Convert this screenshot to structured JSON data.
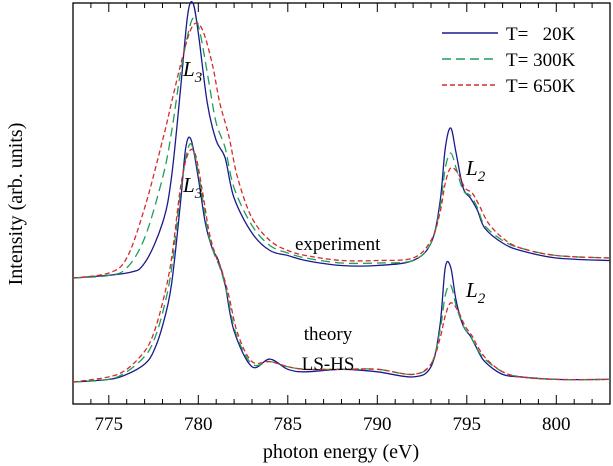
{
  "chart_data": {
    "type": "line",
    "xlabel": "photon energy (eV)",
    "ylabel": "Intensity (arb. units)",
    "xlim": [
      773,
      803
    ],
    "x_ticks": [
      775,
      780,
      785,
      790,
      795,
      800
    ],
    "x_tick_labels": [
      "775",
      "780",
      "785",
      "790",
      "795",
      "800"
    ],
    "y_ticks_shown": false,
    "grid": false,
    "legend": {
      "placement": "top-right",
      "entries": [
        {
          "label": "T=   20K",
          "color": "#1a1a8c",
          "style": "solid"
        },
        {
          "label": "T= 300K",
          "color": "#1f9e5a",
          "style": "dashed"
        },
        {
          "label": "T= 650K",
          "color": "#d42a2a",
          "style": "dotted-dashed"
        }
      ]
    },
    "annotations": {
      "experiment_label": "experiment",
      "theory_label_line1": "theory",
      "theory_label_line2": "LS-HS",
      "l3_main": "L",
      "l3_sub": "3",
      "l2_main": "L",
      "l2_sub": "2"
    },
    "panels": [
      {
        "name": "experiment",
        "series": [
          {
            "temperature": "20K",
            "x": [
              773,
              776,
              777,
              778,
              778.5,
              779,
              779.4,
              779.7,
              780,
              780.5,
              781,
              781.5,
              782,
              783,
              784,
              785,
              786,
              788,
              790,
              792,
              793,
              793.5,
              793.8,
              794.1,
              794.4,
              794.8,
              795.2,
              795.6,
              796,
              797,
              798,
              800,
              803
            ],
            "y": [
              0.0,
              0.02,
              0.06,
              0.22,
              0.4,
              0.75,
              1.05,
              1.1,
              0.98,
              0.7,
              0.55,
              0.48,
              0.32,
              0.18,
              0.11,
              0.09,
              0.07,
              0.05,
              0.05,
              0.07,
              0.14,
              0.3,
              0.52,
              0.6,
              0.5,
              0.36,
              0.32,
              0.27,
              0.2,
              0.14,
              0.11,
              0.08,
              0.07
            ]
          },
          {
            "temperature": "300K",
            "x": [
              773,
              775,
              776,
              777,
              778,
              778.5,
              779,
              779.5,
              779.8,
              780.1,
              780.6,
              781,
              781.5,
              782,
              783,
              784,
              785,
              786,
              788,
              790,
              792,
              793,
              793.5,
              793.8,
              794.1,
              794.4,
              794.8,
              795.2,
              795.6,
              796,
              797,
              798,
              800,
              803
            ],
            "y": [
              0.0,
              0.01,
              0.04,
              0.16,
              0.4,
              0.58,
              0.82,
              1.0,
              1.04,
              0.98,
              0.78,
              0.62,
              0.52,
              0.36,
              0.21,
              0.13,
              0.1,
              0.08,
              0.06,
              0.06,
              0.07,
              0.14,
              0.28,
              0.44,
              0.5,
              0.44,
              0.35,
              0.33,
              0.28,
              0.21,
              0.15,
              0.12,
              0.09,
              0.08
            ]
          },
          {
            "temperature": "650K",
            "x": [
              773,
              775,
              776,
              777,
              778,
              778.5,
              779,
              779.5,
              779.9,
              780.3,
              780.8,
              781.2,
              781.7,
              782.2,
              783,
              784,
              785,
              786,
              788,
              790,
              792,
              793,
              793.5,
              793.8,
              794.1,
              794.5,
              794.9,
              795.3,
              795.7,
              796.2,
              797,
              798,
              800,
              803
            ],
            "y": [
              0.0,
              0.02,
              0.08,
              0.28,
              0.55,
              0.7,
              0.85,
              0.98,
              1.02,
              0.98,
              0.85,
              0.7,
              0.57,
              0.4,
              0.24,
              0.15,
              0.11,
              0.09,
              0.07,
              0.07,
              0.08,
              0.15,
              0.26,
              0.38,
              0.44,
              0.42,
              0.36,
              0.34,
              0.29,
              0.22,
              0.16,
              0.12,
              0.09,
              0.08
            ]
          }
        ]
      },
      {
        "name": "theory",
        "series": [
          {
            "temperature": "20K",
            "x": [
              773,
              775,
              776,
              777,
              777.5,
              778,
              778.5,
              779,
              779.3,
              779.6,
              780,
              780.4,
              780.8,
              781.1,
              781.5,
              782,
              783,
              784,
              785,
              786,
              788,
              790,
              792,
              793,
              793.5,
              793.8,
              794.1,
              794.4,
              794.8,
              795.2,
              795.5,
              796,
              797,
              798,
              800,
              803
            ],
            "y": [
              0.0,
              0.01,
              0.03,
              0.07,
              0.12,
              0.22,
              0.38,
              0.7,
              0.92,
              0.95,
              0.8,
              0.62,
              0.52,
              0.48,
              0.38,
              0.2,
              0.06,
              0.09,
              0.05,
              0.04,
              0.05,
              0.04,
              0.02,
              0.06,
              0.22,
              0.45,
              0.45,
              0.32,
              0.22,
              0.18,
              0.14,
              0.08,
              0.03,
              0.02,
              0.01,
              0.01
            ]
          },
          {
            "temperature": "300K",
            "x": [
              773,
              775,
              776,
              777,
              777.5,
              778,
              778.5,
              779,
              779.4,
              779.7,
              780.1,
              780.5,
              780.9,
              781.2,
              781.6,
              782.1,
              783,
              784,
              785,
              786,
              788,
              790,
              792,
              793,
              793.5,
              793.8,
              794.1,
              794.4,
              794.8,
              795.2,
              795.5,
              796,
              797,
              798,
              800,
              803
            ],
            "y": [
              0.0,
              0.01,
              0.04,
              0.1,
              0.16,
              0.27,
              0.44,
              0.74,
              0.91,
              0.92,
              0.78,
              0.6,
              0.5,
              0.45,
              0.35,
              0.19,
              0.07,
              0.08,
              0.06,
              0.05,
              0.05,
              0.05,
              0.03,
              0.07,
              0.2,
              0.34,
              0.38,
              0.3,
              0.22,
              0.18,
              0.14,
              0.09,
              0.04,
              0.02,
              0.01,
              0.01
            ]
          },
          {
            "temperature": "650K",
            "x": [
              773,
              775,
              776,
              777,
              777.5,
              778,
              778.5,
              779,
              779.4,
              779.8,
              780.2,
              780.6,
              781,
              781.3,
              781.7,
              782.2,
              783,
              784,
              785,
              786,
              788,
              790,
              792,
              793,
              793.5,
              793.8,
              794.1,
              794.5,
              794.9,
              795.3,
              795.6,
              796.1,
              797,
              798,
              800,
              803
            ],
            "y": [
              0.0,
              0.02,
              0.05,
              0.12,
              0.19,
              0.31,
              0.48,
              0.76,
              0.89,
              0.9,
              0.76,
              0.59,
              0.49,
              0.44,
              0.34,
              0.19,
              0.08,
              0.08,
              0.06,
              0.05,
              0.05,
              0.05,
              0.03,
              0.07,
              0.17,
              0.26,
              0.31,
              0.28,
              0.22,
              0.18,
              0.14,
              0.09,
              0.04,
              0.02,
              0.01,
              0.01
            ]
          }
        ]
      }
    ]
  }
}
